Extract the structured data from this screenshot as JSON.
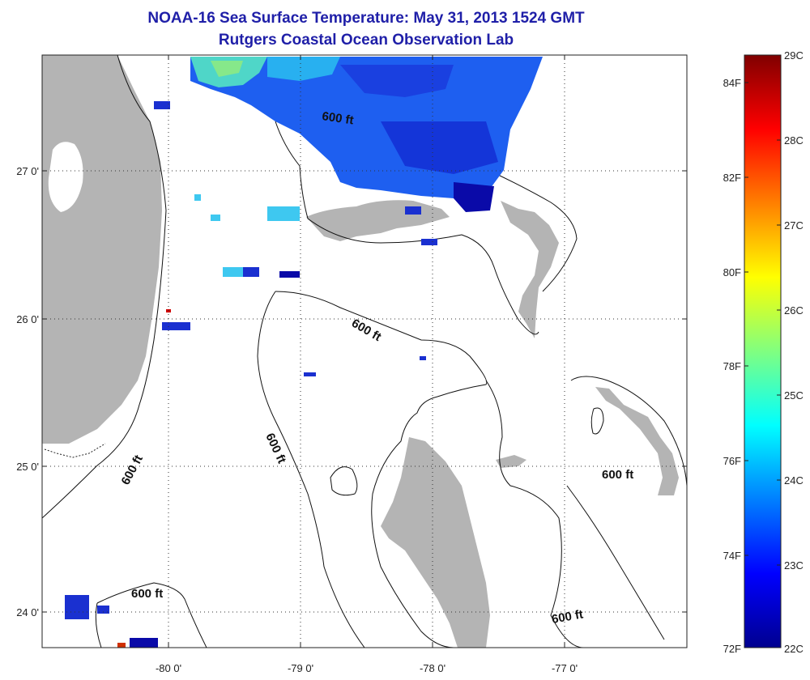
{
  "title": "NOAA-16 Sea Surface Temperature:  May 31, 2013 1524 GMT",
  "subtitle": "Rutgers Coastal Ocean Observation Lab",
  "axes": {
    "x_ticks": [
      "-80 0'",
      "-79 0'",
      "-78 0'",
      "-77 0'"
    ],
    "y_ticks": [
      "27 0'",
      "26 0'",
      "25 0'",
      "24 0'"
    ]
  },
  "contour_label": "600 ft",
  "colorbar": {
    "celsius": [
      "29C",
      "28C",
      "27C",
      "26C",
      "25C",
      "24C",
      "23C",
      "22C"
    ],
    "fahrenheit": [
      "84F",
      "82F",
      "80F",
      "78F",
      "76F",
      "74F",
      "72F"
    ],
    "colors": [
      "#00008f",
      "#0000ff",
      "#0080ff",
      "#00ffff",
      "#80ff80",
      "#ffff00",
      "#ff8000",
      "#ff0000",
      "#800000"
    ]
  },
  "colors": {
    "land": "#b4b4b4",
    "title": "#1f1fa8"
  }
}
